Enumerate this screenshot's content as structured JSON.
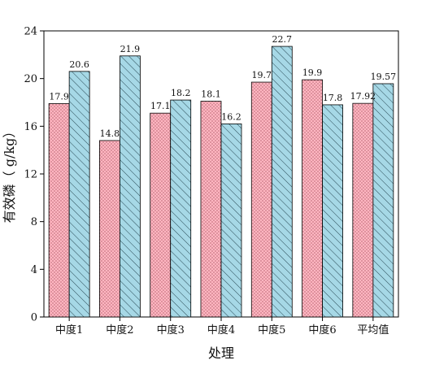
{
  "chart_data": {
    "type": "bar",
    "categories": [
      "中度1",
      "中度2",
      "中度3",
      "中度4",
      "中度5",
      "中度6",
      "平均值"
    ],
    "series": [
      {
        "values": [
          17.9,
          14.8,
          17.1,
          18.1,
          19.7,
          19.9,
          17.92
        ],
        "labels": [
          "17.9",
          "14.8",
          "17.1",
          "18.1",
          "19.7",
          "19.9",
          "17.92"
        ],
        "color": "#ffb6c1",
        "pattern": "dots"
      },
      {
        "values": [
          20.6,
          21.9,
          18.2,
          16.2,
          22.7,
          17.8,
          19.57
        ],
        "labels": [
          "20.6",
          "21.9",
          "18.2",
          "16.2",
          "22.7",
          "17.8",
          "19.57"
        ],
        "color": "#a6d8e6",
        "pattern": "diagonal-hatch"
      }
    ],
    "xlabel": "处理",
    "ylabel": "有效磷（ g/kg）",
    "ylim": [
      0,
      24
    ],
    "yticks": [
      0,
      4,
      8,
      12,
      16,
      20,
      24
    ],
    "grid": false,
    "legend": "none"
  }
}
